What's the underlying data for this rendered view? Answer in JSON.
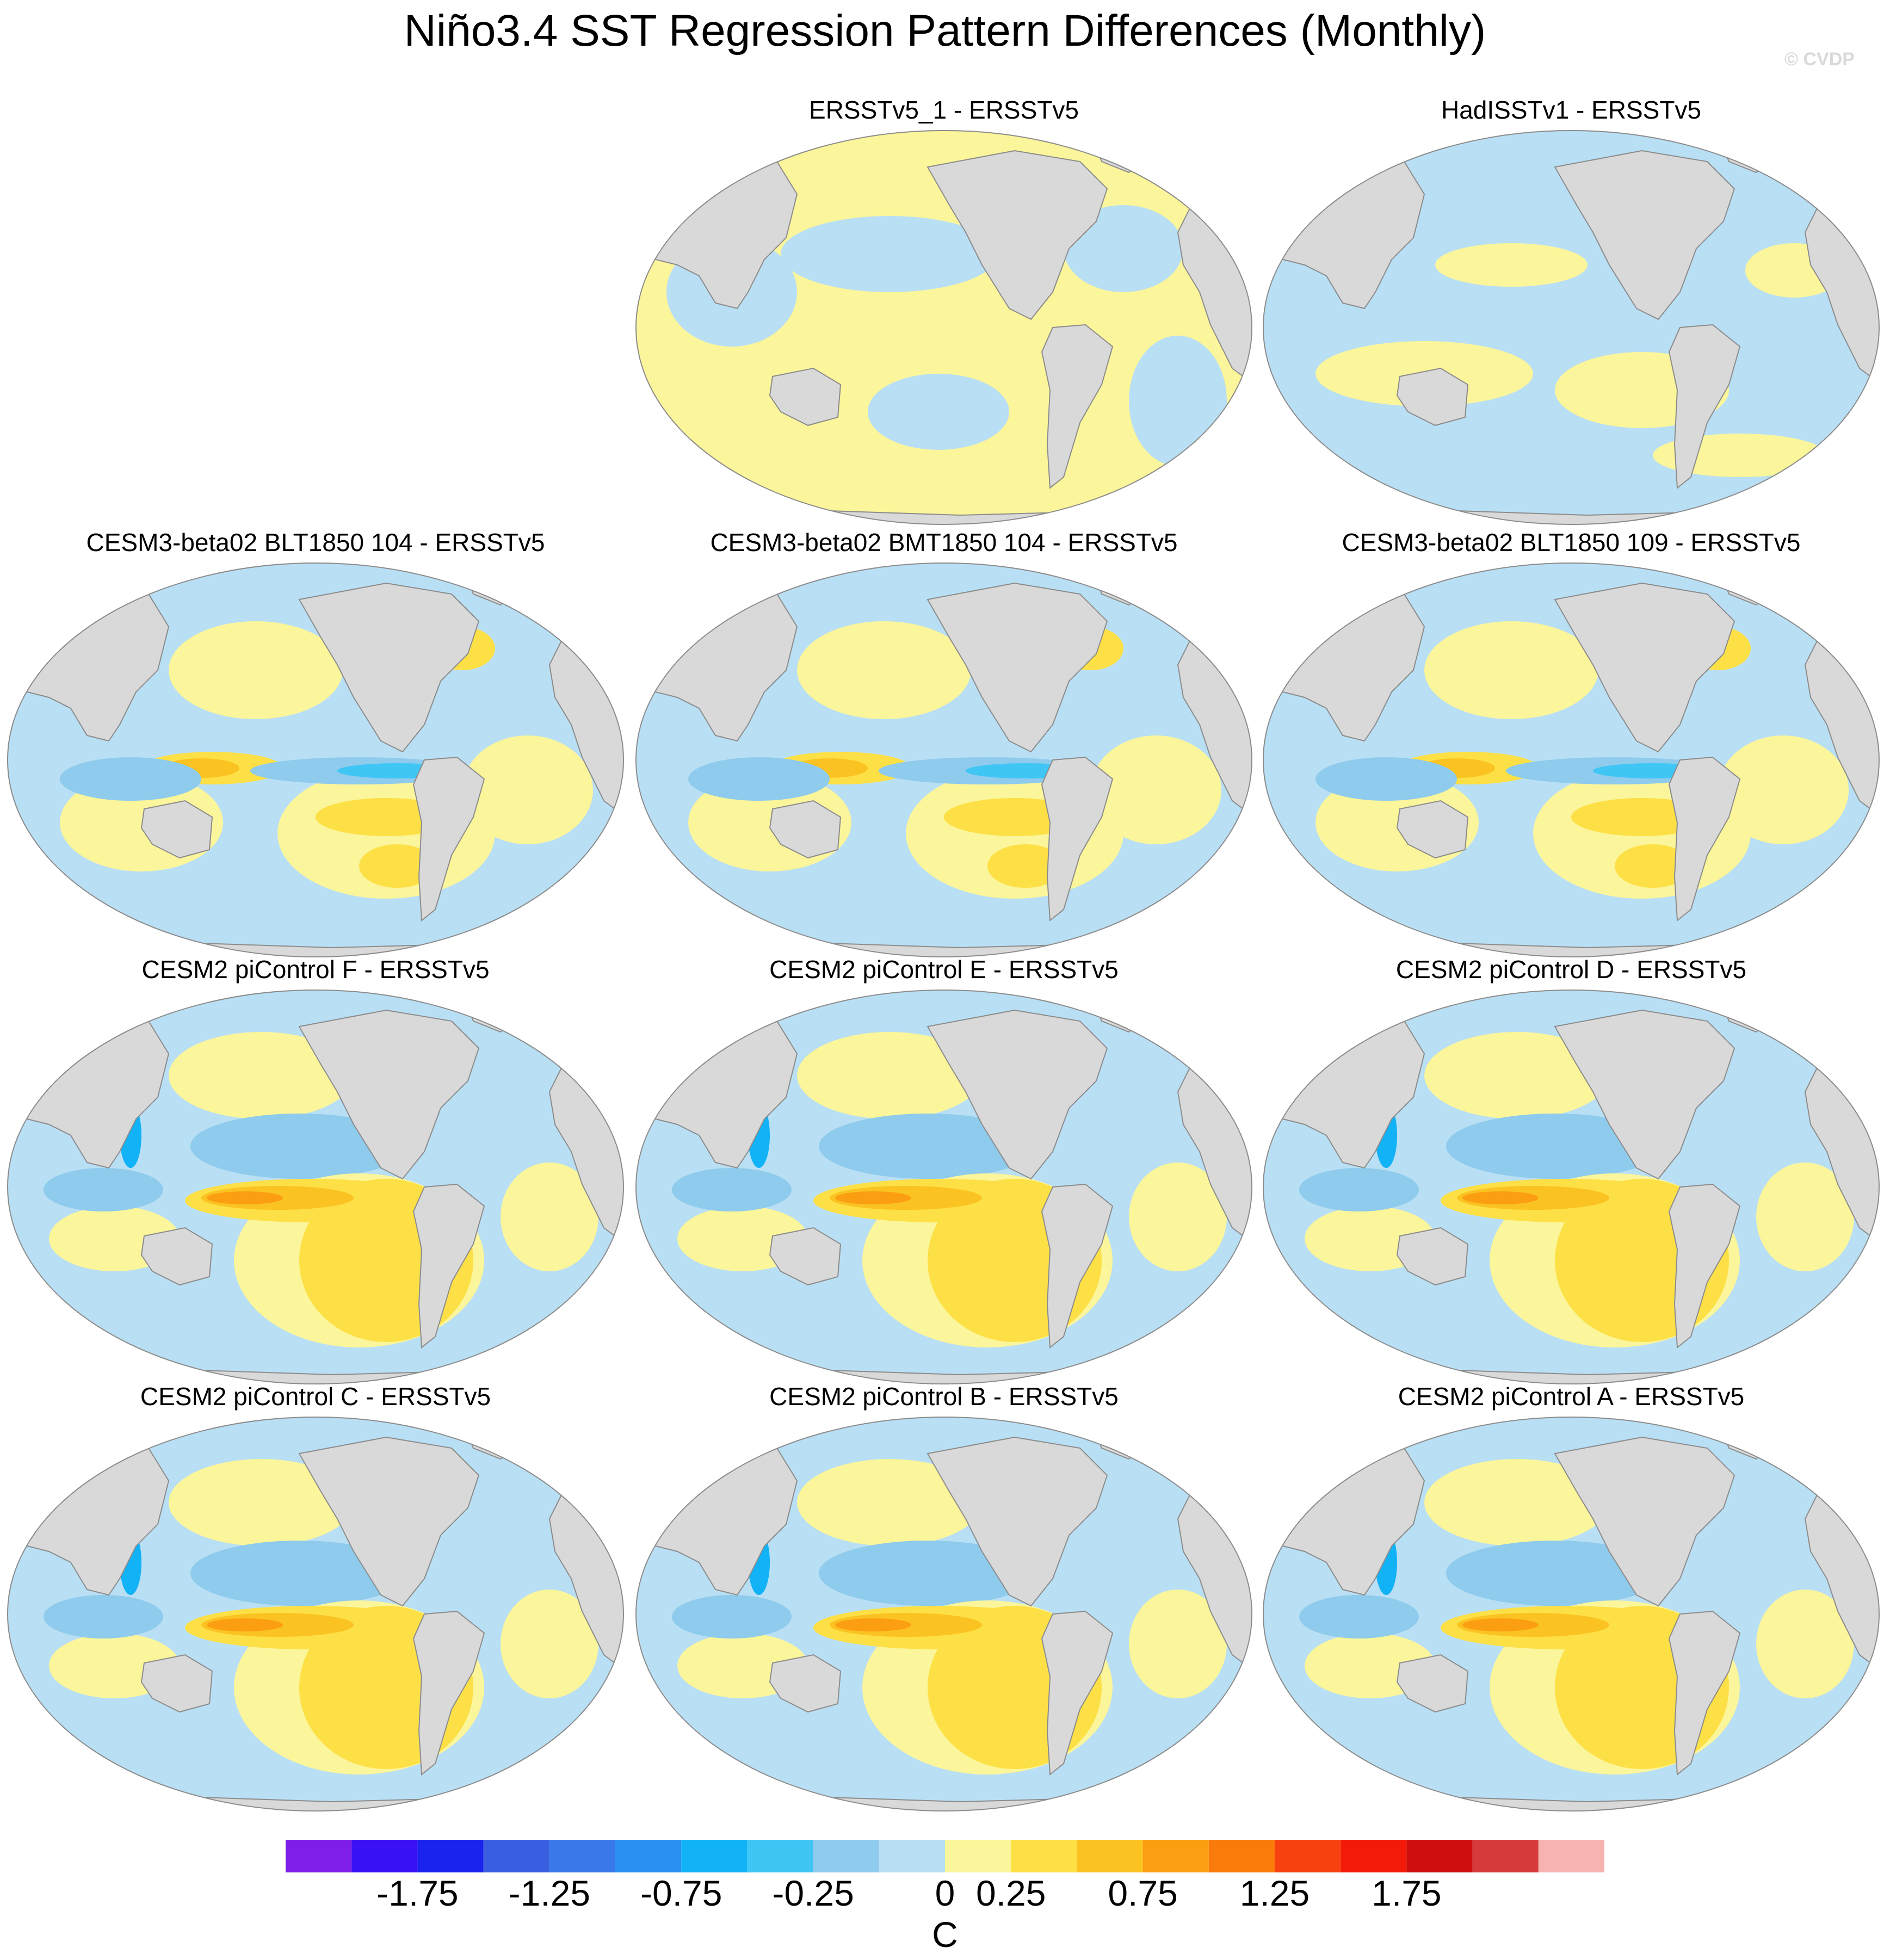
{
  "title": "Niño3.4 SST Regression Pattern Differences (Monthly)",
  "copyright": "© CVDP",
  "panels": [
    {
      "title": "ERSSTv5_1 - ERSSTv5",
      "style": "obs1"
    },
    {
      "title": "HadISSTv1 - ERSSTv5",
      "style": "obs2"
    },
    {
      "title": "CESM3-beta02 BLT1850 104 - ERSSTv5",
      "style": "beta"
    },
    {
      "title": "CESM3-beta02 BMT1850 104 - ERSSTv5",
      "style": "beta"
    },
    {
      "title": "CESM3-beta02 BLT1850 109 - ERSSTv5",
      "style": "beta"
    },
    {
      "title": "CESM2 piControl F - ERSSTv5",
      "style": "cesm2"
    },
    {
      "title": "CESM2 piControl E - ERSSTv5",
      "style": "cesm2"
    },
    {
      "title": "CESM2 piControl D - ERSSTv5",
      "style": "cesm2"
    },
    {
      "title": "CESM2 piControl C - ERSSTv5",
      "style": "cesm2"
    },
    {
      "title": "CESM2 piControl B - ERSSTv5",
      "style": "cesm2"
    },
    {
      "title": "CESM2 piControl A - ERSSTv5",
      "style": "cesm2"
    }
  ],
  "colorbar": {
    "colors": [
      "#7f1ee8",
      "#3a10f5",
      "#1a22ee",
      "#3a5ee0",
      "#3a78ea",
      "#2a90f2",
      "#12b2f6",
      "#40c6f5",
      "#8ecbec",
      "#b9dff4",
      "#fbf59b",
      "#fde046",
      "#fbc322",
      "#fb9e12",
      "#fa7a0a",
      "#f74210",
      "#f41a0a",
      "#cf0e10",
      "#d73a3a",
      "#f7b2b2"
    ],
    "tick_labels": [
      "-1.75",
      "-1.25",
      "-0.75",
      "-0.25",
      "0",
      "0.25",
      "0.75",
      "1.25",
      "1.75"
    ],
    "units": "C"
  }
}
